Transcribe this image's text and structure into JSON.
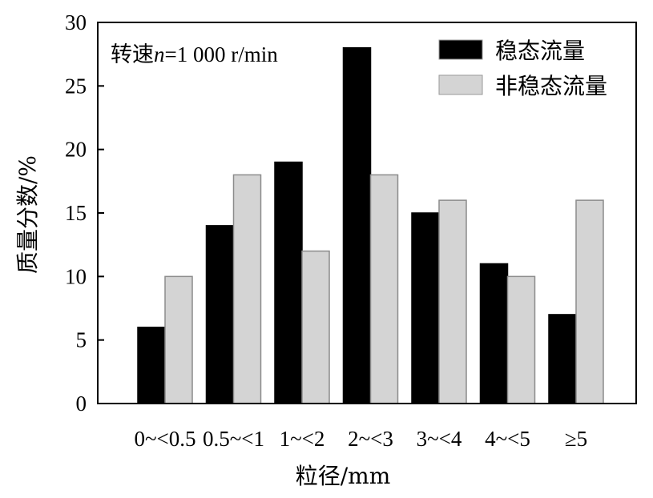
{
  "chart_data": {
    "type": "bar",
    "categories": [
      "0~<0.5",
      "0.5~<1",
      "1~<2",
      "2~<3",
      "3~<4",
      "4~<5",
      "≥5"
    ],
    "series": [
      {
        "name": "稳态流量",
        "values": [
          6,
          14,
          19,
          28,
          15,
          11,
          7
        ],
        "color": "#000000"
      },
      {
        "name": "非稳态流量",
        "values": [
          10,
          18,
          12,
          18,
          16,
          10,
          16
        ],
        "color": "#d4d4d4"
      }
    ],
    "xlabel": "粒径/mm",
    "ylabel": "质量分数/%",
    "ylim": [
      0,
      30
    ],
    "yticks": [
      0,
      5,
      10,
      15,
      20,
      25,
      30
    ],
    "grid": false,
    "legend_position": "top-right",
    "annotation": {
      "prefix": "转速",
      "variable": "n",
      "suffix": "=1 000 r/min"
    }
  }
}
